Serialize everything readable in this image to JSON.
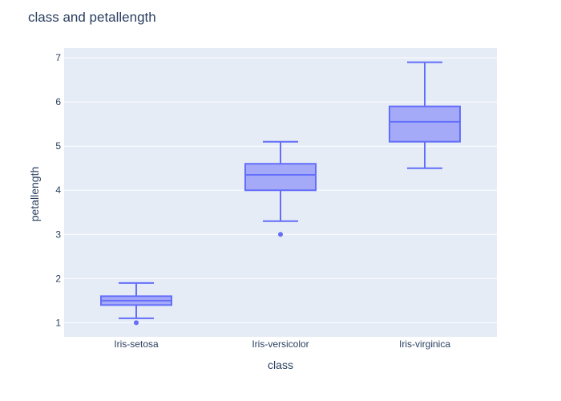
{
  "chart_data": {
    "type": "box",
    "title": "class and petallength",
    "xlabel": "class",
    "ylabel": "petallength",
    "ylim": [
      0.68,
      7.22
    ],
    "yticks": [
      1,
      2,
      3,
      4,
      5,
      6,
      7
    ],
    "grid": true,
    "categories": [
      "Iris-setosa",
      "Iris-versicolor",
      "Iris-virginica"
    ],
    "boxes": [
      {
        "category": "Iris-setosa",
        "lower_whisker": 1.1,
        "q1": 1.4,
        "median": 1.5,
        "q3": 1.6,
        "upper_whisker": 1.9,
        "outliers": [
          1.0
        ]
      },
      {
        "category": "Iris-versicolor",
        "lower_whisker": 3.3,
        "q1": 4.0,
        "median": 4.35,
        "q3": 4.6,
        "upper_whisker": 5.1,
        "outliers": [
          3.0
        ]
      },
      {
        "category": "Iris-virginica",
        "lower_whisker": 4.5,
        "q1": 5.1,
        "median": 5.55,
        "q3": 5.9,
        "upper_whisker": 6.9,
        "outliers": []
      }
    ],
    "colors": {
      "line": "#636efa",
      "fill": "#a5aaf8",
      "plot_bg": "#e5ecf6",
      "grid": "#ffffff",
      "text": "#2a3f5f"
    }
  }
}
